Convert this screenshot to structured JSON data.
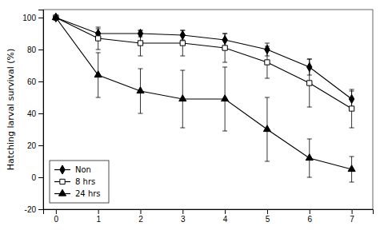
{
  "chart_data": {
    "type": "line",
    "x": [
      0,
      1,
      2,
      3,
      4,
      5,
      6,
      7
    ],
    "series": [
      {
        "name": "Non",
        "color": "#000000",
        "marker": "diamond",
        "line_style": "solid",
        "values": [
          100,
          90,
          90,
          89,
          86,
          80,
          69,
          49
        ],
        "errors": [
          0,
          3,
          2,
          3,
          4,
          4,
          5,
          5
        ]
      },
      {
        "name": "8 hrs",
        "color": "#000000",
        "marker": "open-square",
        "line_style": "solid",
        "values": [
          100,
          87,
          84,
          84,
          81,
          72,
          59,
          43
        ],
        "errors": [
          0,
          7,
          8,
          8,
          9,
          10,
          15,
          12
        ]
      },
      {
        "name": "24 hrs",
        "color": "#000000",
        "marker": "triangle",
        "line_style": "solid",
        "values": [
          100,
          64,
          54,
          49,
          49,
          30,
          12,
          5
        ],
        "errors": [
          0,
          14,
          14,
          18,
          20,
          20,
          12,
          8
        ]
      }
    ],
    "ylabel": "Hatching larval survival (%)",
    "xlim": [
      -0.3,
      7.5
    ],
    "ylim": [
      -20,
      105
    ],
    "xticks": [
      0,
      1,
      2,
      3,
      4,
      5,
      6,
      7
    ],
    "yticks": [
      -20,
      0,
      20,
      40,
      60,
      80,
      100
    ],
    "legend": "lower left",
    "grid": false
  }
}
